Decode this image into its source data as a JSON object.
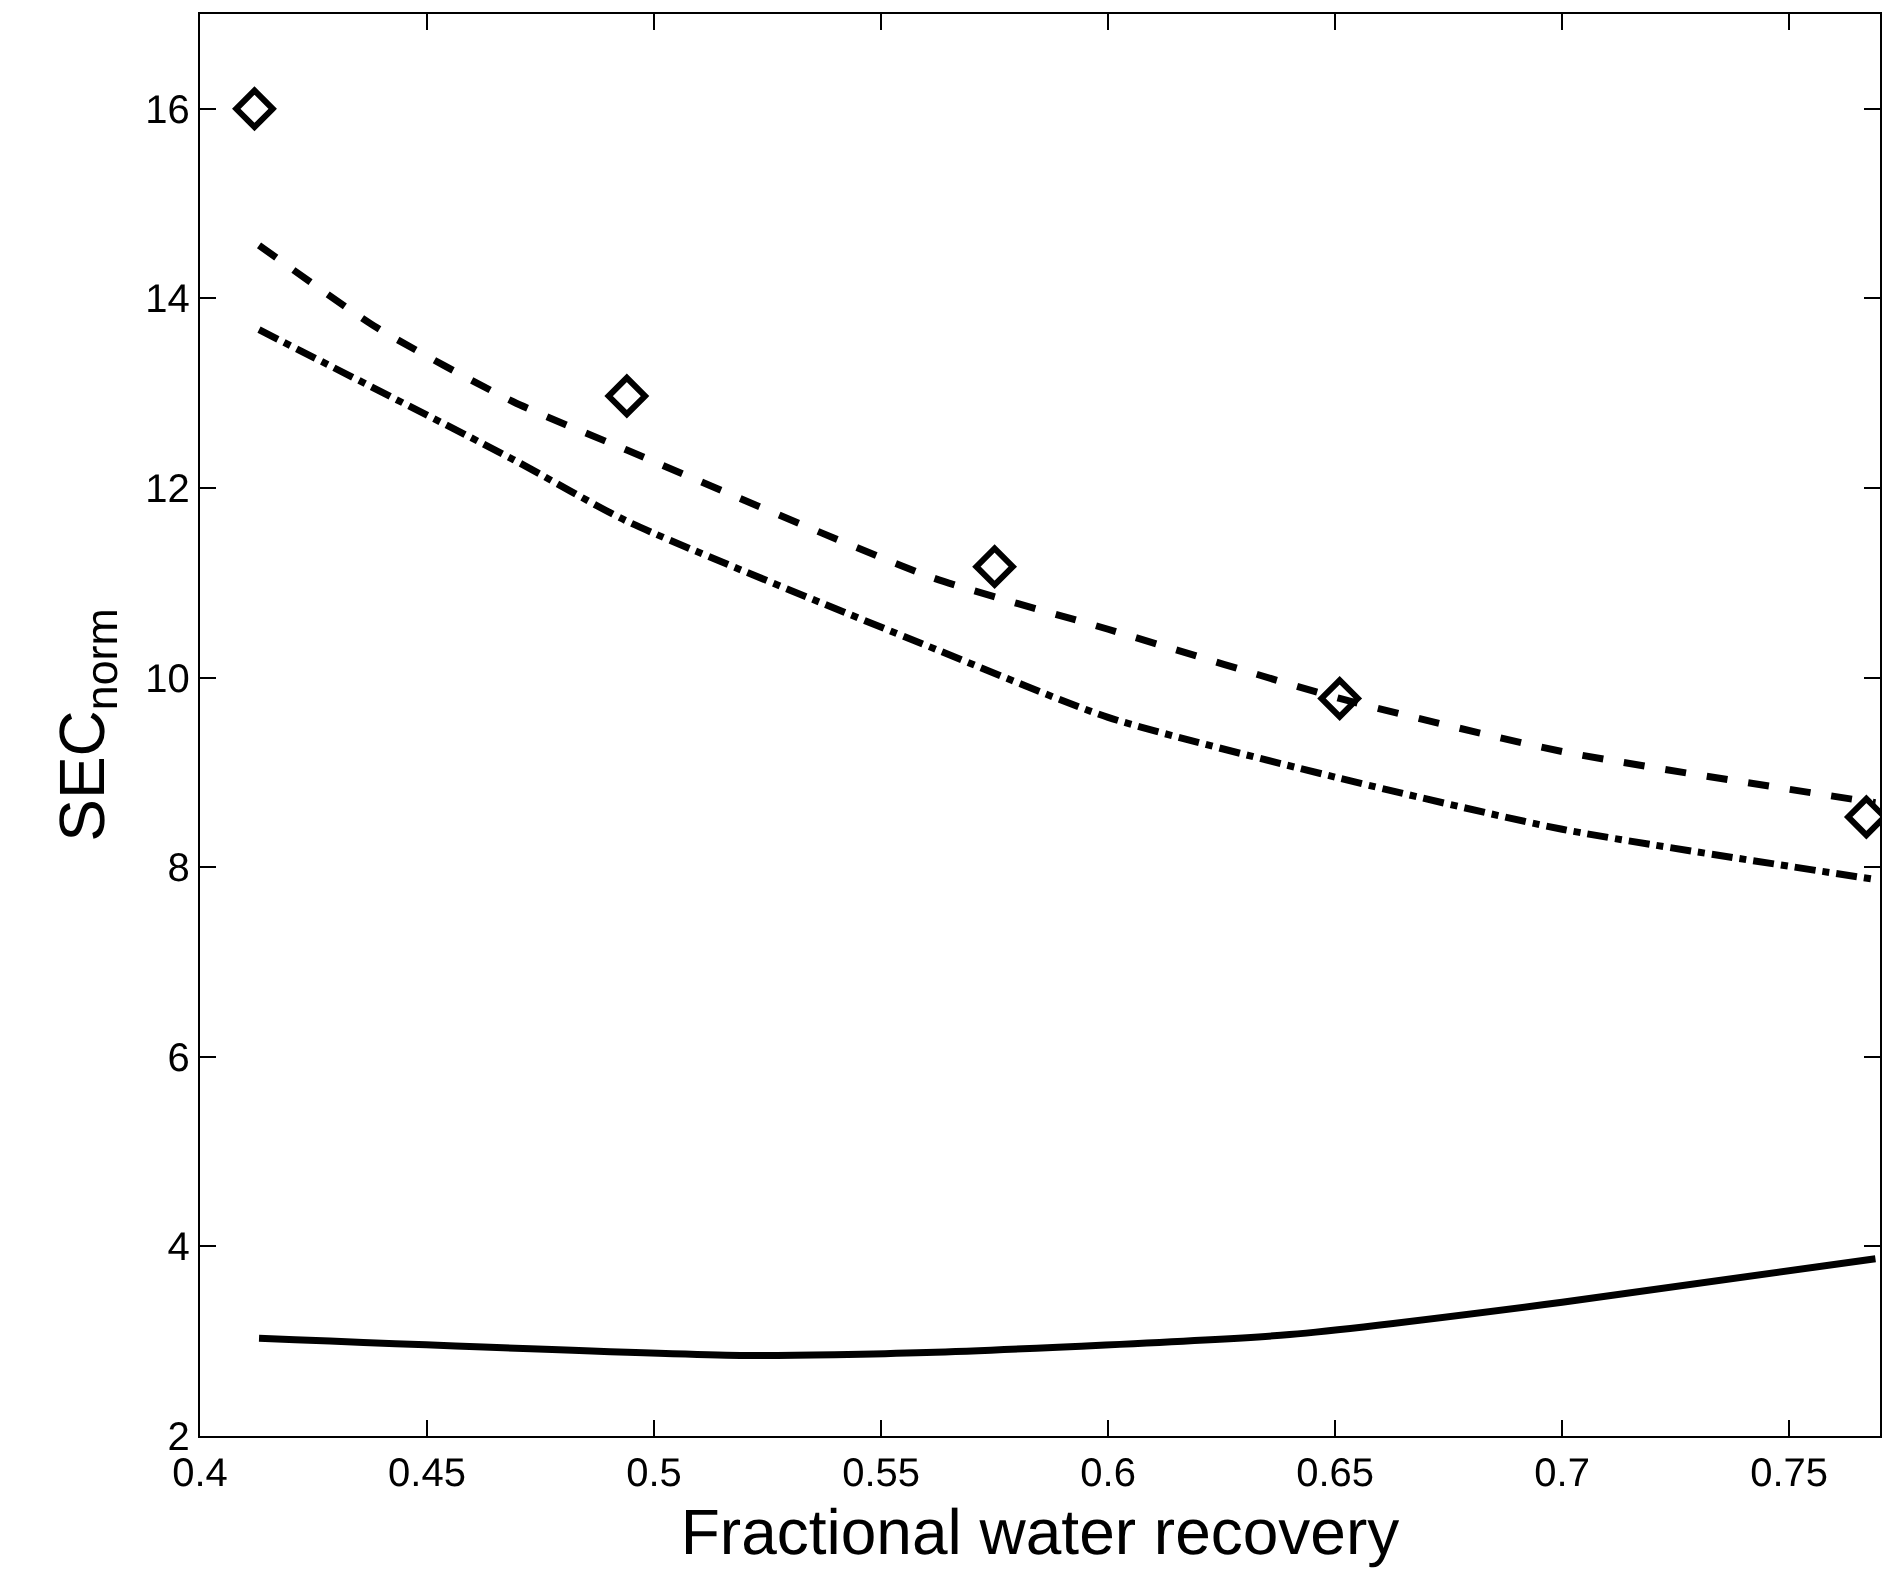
{
  "chart_data": {
    "type": "line",
    "xlabel": "Fractional water recovery",
    "ylabel": "SEC$_{norm}$",
    "xlim": [
      0.4,
      0.77
    ],
    "ylim": [
      2,
      17
    ],
    "xticks": [
      0.4,
      0.45,
      0.5,
      0.55,
      0.6,
      0.65,
      0.7,
      0.75
    ],
    "yticks": [
      2,
      4,
      6,
      8,
      10,
      12,
      14,
      16
    ],
    "series": [
      {
        "type": "scatter",
        "marker": "diamond",
        "color": "#000000",
        "x": [
          0.412,
          0.494,
          0.575,
          0.651,
          0.767
        ],
        "values": [
          16.0,
          12.97,
          11.17,
          9.78,
          8.53
        ]
      },
      {
        "line_style": "dashed",
        "color": "#000000",
        "x": [
          0.413,
          0.439,
          0.469,
          0.494,
          0.561,
          0.6,
          0.651,
          0.7,
          0.769
        ],
        "values": [
          14.56,
          13.69,
          12.91,
          12.4,
          11.06,
          10.51,
          9.78,
          9.22,
          8.68
        ]
      },
      {
        "line_style": "dashdot",
        "color": "#000000",
        "x": [
          0.413,
          0.469,
          0.494,
          0.563,
          0.6,
          0.65,
          0.7,
          0.769
        ],
        "values": [
          13.67,
          12.3,
          11.65,
          10.28,
          9.58,
          8.95,
          8.4,
          7.87
        ]
      },
      {
        "line_style": "solid",
        "color": "#000000",
        "x": [
          0.413,
          0.519,
          0.56,
          0.64,
          0.7,
          0.769
        ],
        "values": [
          3.03,
          2.85,
          2.88,
          3.07,
          3.41,
          3.87
        ]
      }
    ]
  }
}
